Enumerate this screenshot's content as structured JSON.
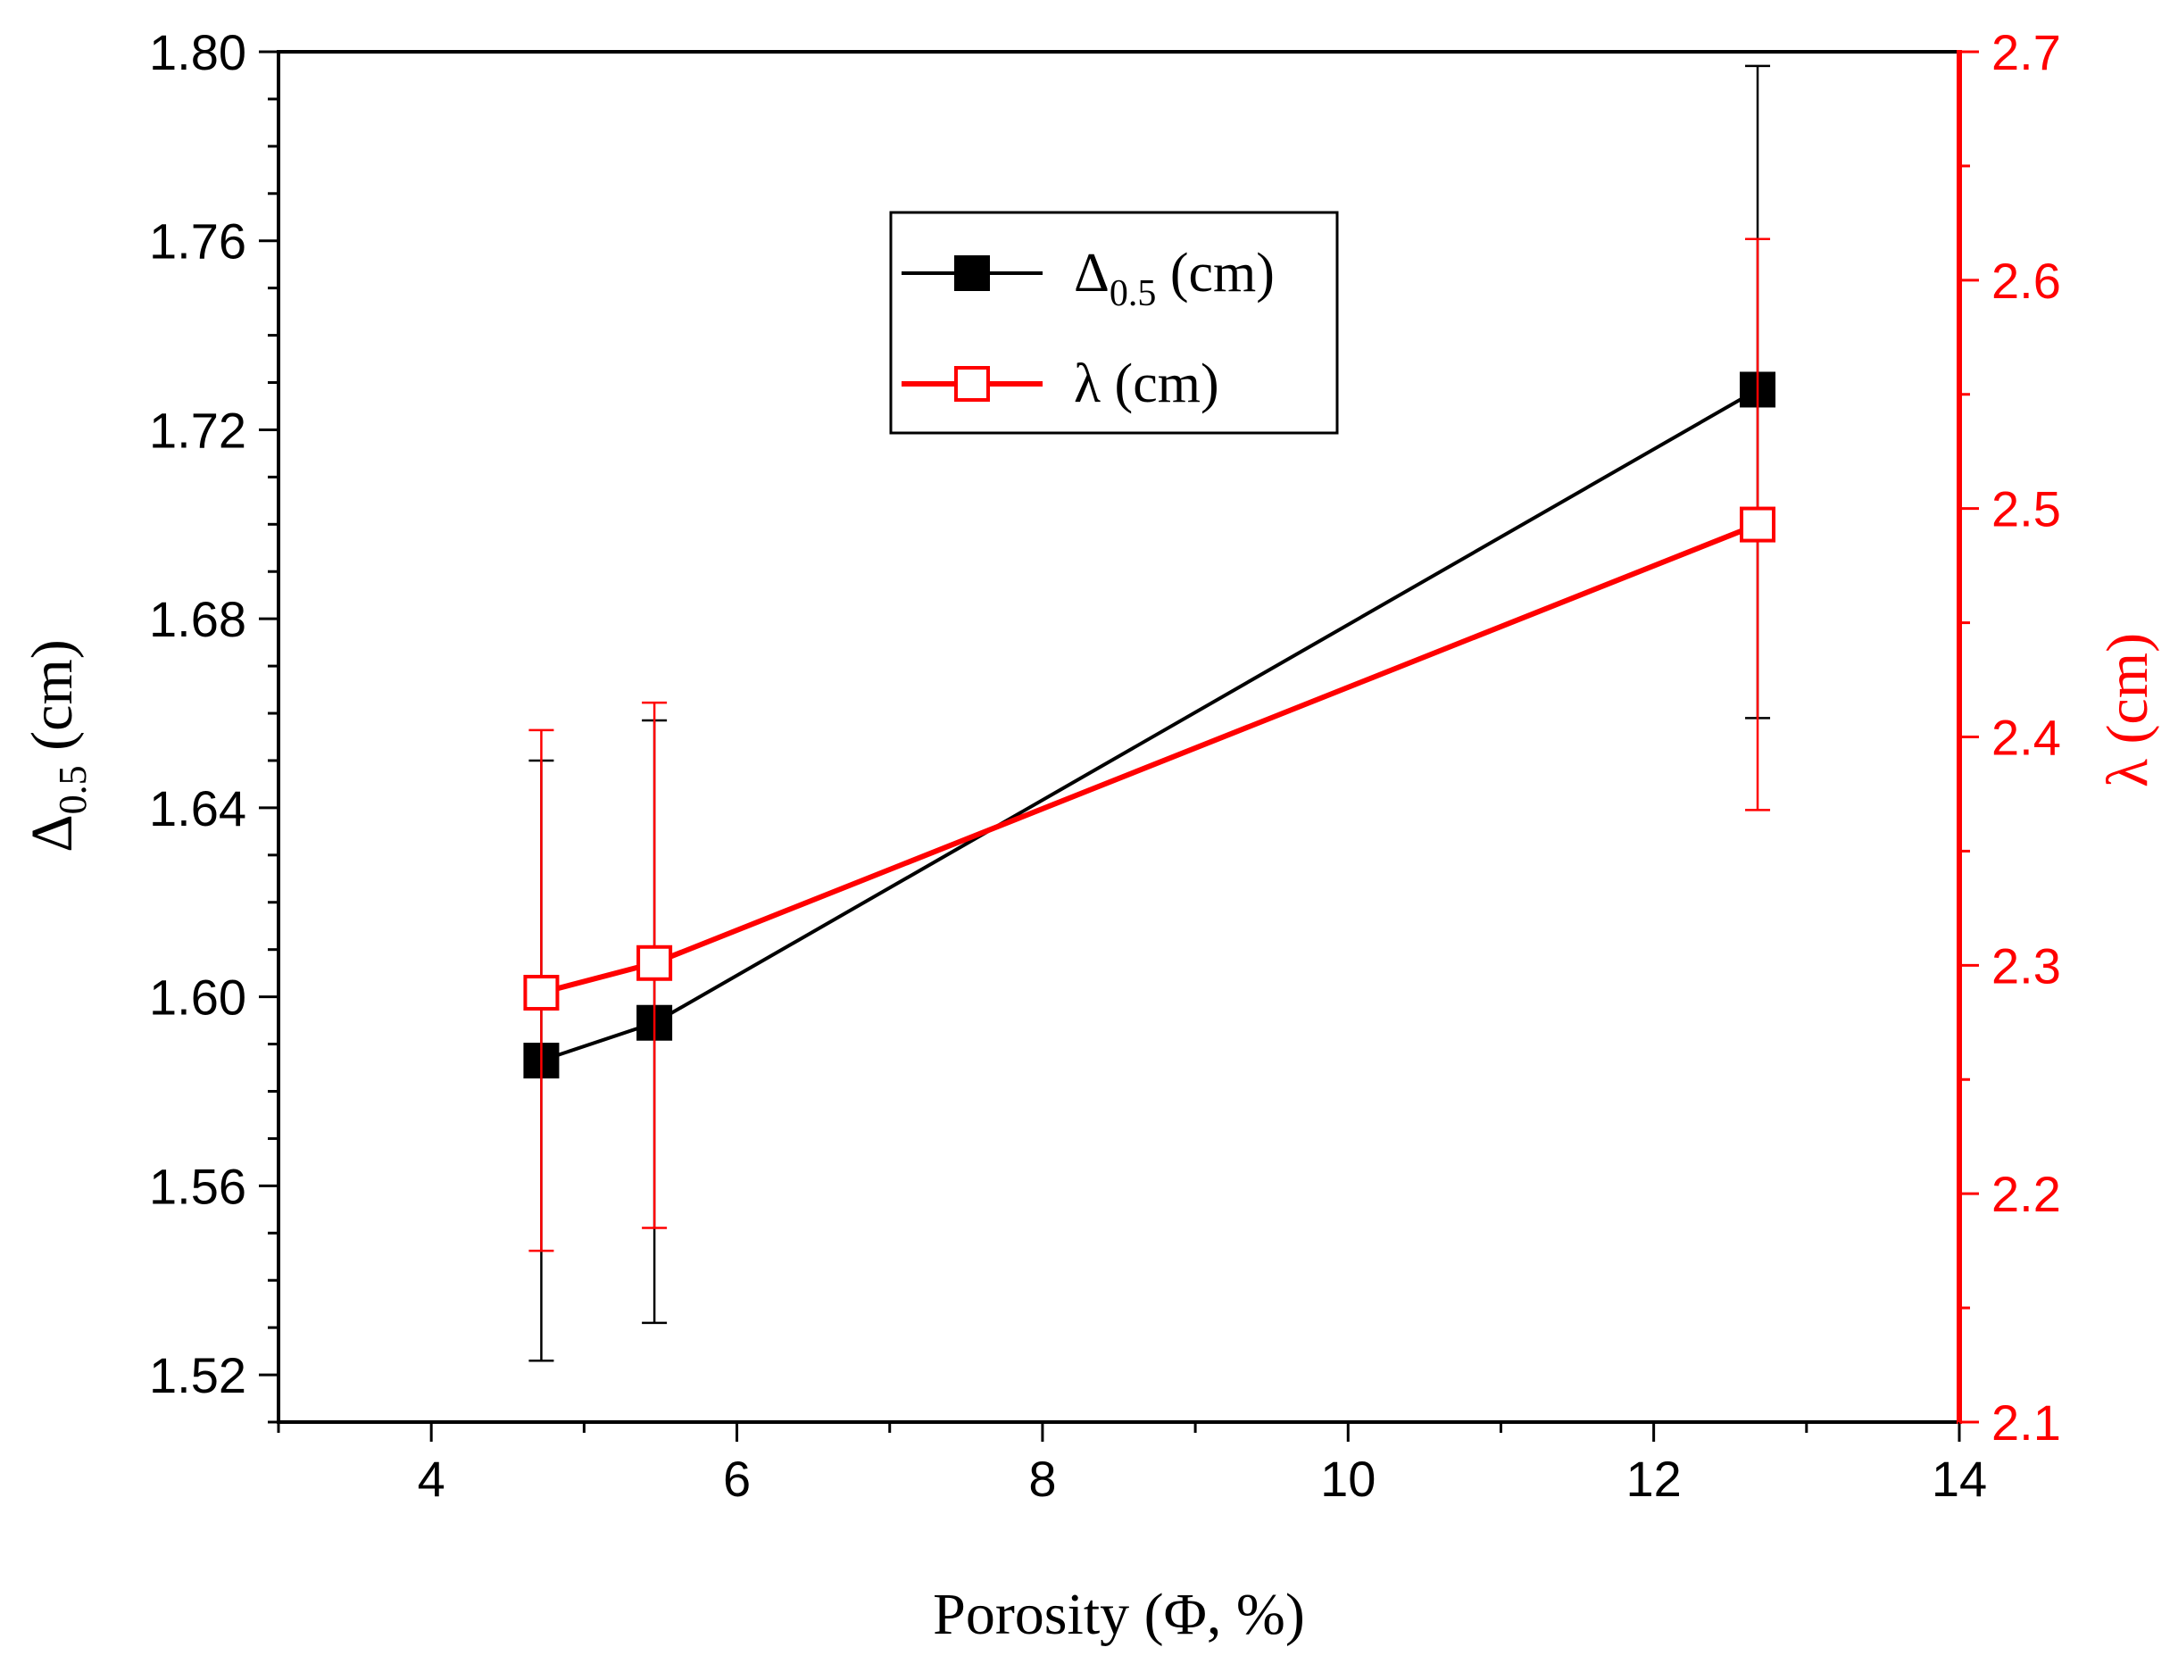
{
  "chart_data": {
    "type": "line",
    "title": "",
    "xlabel": "Porosity (Φ, %)",
    "ylabel": {
      "main": "Δ",
      "sub": "0.5",
      "unit": " (cm)"
    },
    "y2label": "λ (cm)",
    "xlim": [
      3,
      14
    ],
    "ylim": [
      1.51,
      1.8
    ],
    "y2lim": [
      2.1,
      2.7
    ],
    "xticks": [
      4,
      6,
      8,
      10,
      12,
      14
    ],
    "yticks": [
      1.52,
      1.56,
      1.6,
      1.64,
      1.68,
      1.72,
      1.76,
      1.8
    ],
    "y2ticks": [
      2.1,
      2.2,
      2.3,
      2.4,
      2.5,
      2.6,
      2.7
    ],
    "x_tick_labels": [
      "4",
      "6",
      "8",
      "10",
      "12",
      "14"
    ],
    "y_tick_labels": [
      "1.52",
      "1.56",
      "1.60",
      "1.64",
      "1.68",
      "1.72",
      "1.76",
      "1.80"
    ],
    "y2_tick_labels": [
      "2.1",
      "2.2",
      "2.3",
      "2.4",
      "2.5",
      "2.6",
      "2.7"
    ],
    "legend_position": "top-center",
    "series": [
      {
        "name": "Δ0.5 (cm)",
        "legend": {
          "main": "Δ",
          "sub": "0.5",
          "unit": " (cm)"
        },
        "axis": "left",
        "color": "#000000",
        "marker": "filled-square",
        "x": [
          4.72,
          5.46,
          12.68
        ],
        "y": [
          1.5865,
          1.5945,
          1.7285
        ],
        "err_low": [
          1.523,
          1.531,
          1.659
        ],
        "err_high": [
          1.65,
          1.6585,
          1.797
        ]
      },
      {
        "name": "λ (cm)",
        "legend": {
          "main": "λ (cm)"
        },
        "axis": "right",
        "color": "#ff0000",
        "marker": "open-square",
        "x": [
          4.72,
          5.46,
          12.68
        ],
        "y": [
          2.288,
          2.301,
          2.493
        ],
        "err_low": [
          2.175,
          2.185,
          2.368
        ],
        "err_high": [
          2.403,
          2.415,
          2.618
        ]
      }
    ]
  }
}
